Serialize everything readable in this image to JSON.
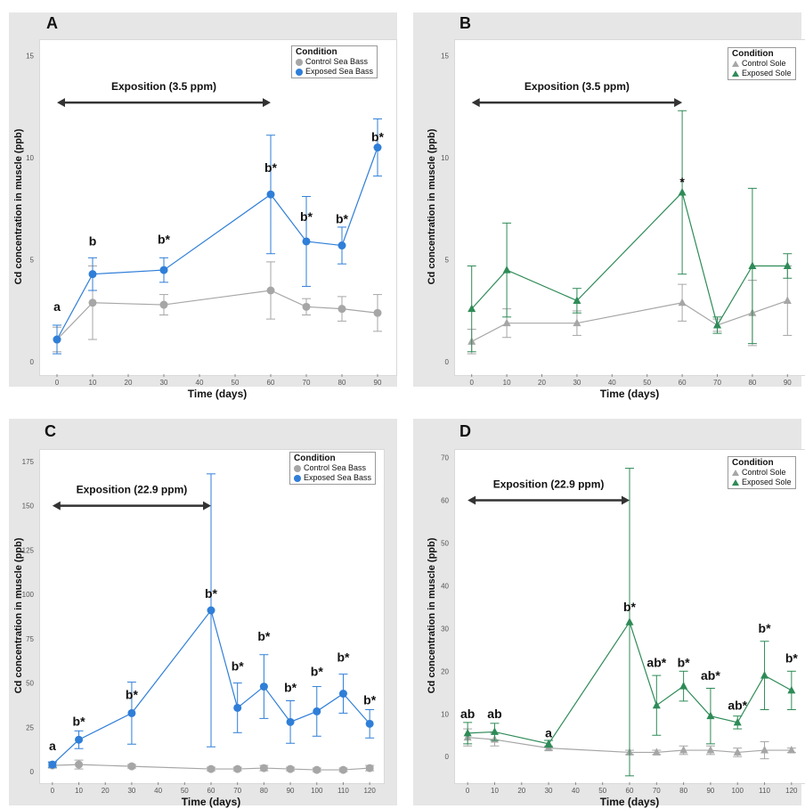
{
  "colors": {
    "control": "#a6a6a6",
    "exposed_bass": "#2f7ed8",
    "exposed_sole": "#2e8b57",
    "panel_bg": "#e6e6e6"
  },
  "chart_data": [
    {
      "panel": "A",
      "type": "line",
      "xlabel": "Time (days)",
      "ylabel": "Cd concentration in muscle (ppb)",
      "x": [
        0,
        10,
        30,
        60,
        70,
        80,
        90
      ],
      "xlim": [
        -5,
        95
      ],
      "xticks": [
        0,
        10,
        20,
        30,
        40,
        50,
        60,
        70,
        80,
        90
      ],
      "ylim": [
        -0.6,
        15.8
      ],
      "yticks": [
        0,
        5,
        10,
        15
      ],
      "marker": "circle",
      "legend_title": "Condition",
      "legend_position": "top-right",
      "exposition": {
        "label": "Exposition (3.5 ppm)",
        "from": 0,
        "to": 60,
        "y": 12.7
      },
      "series": [
        {
          "name": "Control Sea Bass",
          "role": "control",
          "values": [
            1.1,
            2.9,
            2.8,
            3.5,
            2.7,
            2.6,
            2.4
          ],
          "err": [
            0.6,
            1.8,
            0.5,
            1.4,
            0.4,
            0.6,
            0.9
          ]
        },
        {
          "name": "Exposed Sea Bass",
          "role": "exposed",
          "values": [
            1.1,
            4.3,
            4.5,
            8.2,
            5.9,
            5.7,
            10.5
          ],
          "err": [
            0.7,
            0.8,
            0.6,
            2.9,
            2.2,
            0.9,
            1.4
          ]
        }
      ],
      "labels": [
        {
          "x": 0,
          "text": "a",
          "y": 2.5
        },
        {
          "x": 10,
          "text": "b",
          "y": 5.7
        },
        {
          "x": 30,
          "text": "b*",
          "y": 5.8
        },
        {
          "x": 60,
          "text": "b*",
          "y": 9.3
        },
        {
          "x": 70,
          "text": "b*",
          "y": 6.9
        },
        {
          "x": 80,
          "text": "b*",
          "y": 6.8
        },
        {
          "x": 90,
          "text": "b*",
          "y": 10.8
        }
      ]
    },
    {
      "panel": "B",
      "type": "line",
      "xlabel": "Time (days)",
      "ylabel": "Cd concentration in muscle (ppb)",
      "x": [
        0,
        10,
        30,
        60,
        70,
        80,
        90
      ],
      "xlim": [
        -5,
        95
      ],
      "xticks": [
        0,
        10,
        20,
        30,
        40,
        50,
        60,
        70,
        80,
        90
      ],
      "ylim": [
        -0.6,
        15.8
      ],
      "yticks": [
        0,
        5,
        10,
        15
      ],
      "marker": "triangle",
      "legend_title": "Condition",
      "legend_position": "top-right",
      "exposition": {
        "label": "Exposition (3.5 ppm)",
        "from": 0,
        "to": 60,
        "y": 12.7
      },
      "series": [
        {
          "name": "Control Sole",
          "role": "control",
          "values": [
            1.0,
            1.9,
            1.9,
            2.9,
            1.8,
            2.4,
            3.0
          ],
          "err": [
            0.6,
            0.7,
            0.6,
            0.9,
            0.3,
            1.6,
            1.7
          ]
        },
        {
          "name": "Exposed Sole",
          "role": "exposed",
          "values": [
            2.6,
            4.5,
            3.0,
            8.3,
            1.8,
            4.7,
            4.7
          ],
          "err": [
            2.1,
            2.3,
            0.6,
            4.0,
            0.4,
            3.8,
            0.6
          ]
        }
      ],
      "labels": [
        {
          "x": 60,
          "text": "*",
          "y": 8.6
        }
      ]
    },
    {
      "panel": "C",
      "type": "line",
      "xlabel": "Time (days)",
      "ylabel": "Cd concentration in muscle (ppb)",
      "x": [
        0,
        10,
        30,
        60,
        70,
        80,
        90,
        100,
        110,
        120
      ],
      "xlim": [
        -5,
        125
      ],
      "xticks": [
        0,
        10,
        20,
        30,
        40,
        50,
        60,
        70,
        80,
        90,
        100,
        110,
        120
      ],
      "ylim": [
        -6,
        182
      ],
      "yticks": [
        0,
        25,
        50,
        75,
        100,
        125,
        150,
        175
      ],
      "marker": "circle",
      "legend_title": "Condition",
      "legend_position": "top-right",
      "exposition": {
        "label": "Exposition (22.9 ppm)",
        "from": 0,
        "to": 60,
        "y": 150
      },
      "series": [
        {
          "name": "Control Sea Bass",
          "role": "control",
          "values": [
            3.5,
            4.0,
            3.0,
            1.5,
            1.5,
            2.0,
            1.5,
            1.0,
            1.0,
            2.0
          ],
          "err": [
            1.5,
            2.5,
            1.0,
            1.0,
            1.0,
            1.5,
            1.0,
            1.0,
            1.0,
            1.5
          ]
        },
        {
          "name": "Exposed Sea Bass",
          "role": "exposed",
          "values": [
            4.0,
            18.0,
            33.0,
            91.0,
            36.0,
            48.0,
            28.0,
            34.0,
            44.0,
            27.0
          ],
          "err": [
            1.5,
            5.0,
            17.5,
            77.0,
            14.0,
            18.0,
            12.0,
            14.0,
            11.0,
            8.0
          ]
        }
      ],
      "labels": [
        {
          "x": 0,
          "text": "a",
          "y": 12
        },
        {
          "x": 10,
          "text": "b*",
          "y": 26
        },
        {
          "x": 30,
          "text": "b*",
          "y": 41
        },
        {
          "x": 60,
          "text": "b*",
          "y": 98
        },
        {
          "x": 70,
          "text": "b*",
          "y": 57
        },
        {
          "x": 80,
          "text": "b*",
          "y": 74
        },
        {
          "x": 90,
          "text": "b*",
          "y": 45
        },
        {
          "x": 100,
          "text": "b*",
          "y": 54
        },
        {
          "x": 110,
          "text": "b*",
          "y": 62
        },
        {
          "x": 120,
          "text": "b*",
          "y": 38
        }
      ]
    },
    {
      "panel": "D",
      "type": "line",
      "xlabel": "Time (days)",
      "ylabel": "Cd concentration in muscle (ppb)",
      "x": [
        0,
        10,
        30,
        60,
        70,
        80,
        90,
        100,
        110,
        120
      ],
      "xlim": [
        -5,
        125
      ],
      "xticks": [
        0,
        10,
        20,
        30,
        40,
        50,
        60,
        70,
        80,
        90,
        100,
        110,
        120
      ],
      "ylim": [
        -6,
        72
      ],
      "yticks": [
        0,
        10,
        20,
        30,
        40,
        50,
        60,
        70
      ],
      "marker": "triangle",
      "legend_title": "Condition",
      "legend_position": "top-right",
      "exposition": {
        "label": "Exposition (22.9 ppm)",
        "from": 0,
        "to": 60,
        "y": 60
      },
      "series": [
        {
          "name": "Control Sole",
          "role": "control",
          "values": [
            4.5,
            4.0,
            2.0,
            1.0,
            1.0,
            1.5,
            1.5,
            1.0,
            1.5,
            1.5
          ],
          "err": [
            2.0,
            1.5,
            0.5,
            0.5,
            0.5,
            1.0,
            1.0,
            1.0,
            2.0,
            0.5
          ]
        },
        {
          "name": "Exposed Sole",
          "role": "exposed",
          "values": [
            5.5,
            5.8,
            3.0,
            31.5,
            12.0,
            16.5,
            9.5,
            8.0,
            19.0,
            15.5
          ],
          "err": [
            2.5,
            2.0,
            0.8,
            36.0,
            7.0,
            3.5,
            6.5,
            1.5,
            8.0,
            4.5
          ]
        }
      ],
      "labels": [
        {
          "x": 0,
          "text": "ab",
          "y": 9
        },
        {
          "x": 10,
          "text": "ab",
          "y": 9
        },
        {
          "x": 30,
          "text": "a",
          "y": 4.5
        },
        {
          "x": 60,
          "text": "b*",
          "y": 34
        },
        {
          "x": 70,
          "text": "ab*",
          "y": 21
        },
        {
          "x": 80,
          "text": "b*",
          "y": 21
        },
        {
          "x": 90,
          "text": "ab*",
          "y": 18
        },
        {
          "x": 100,
          "text": "ab*",
          "y": 11
        },
        {
          "x": 110,
          "text": "b*",
          "y": 29
        },
        {
          "x": 120,
          "text": "b*",
          "y": 22
        }
      ]
    }
  ]
}
